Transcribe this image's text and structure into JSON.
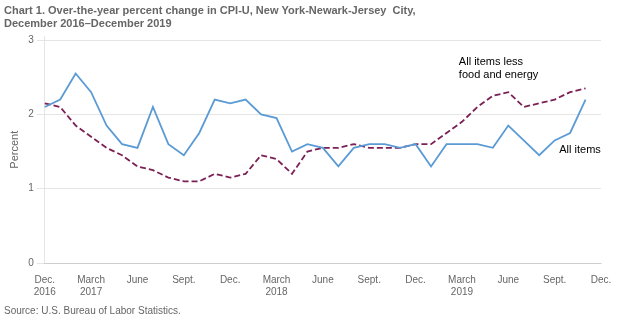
{
  "chart_data": {
    "type": "line",
    "title": "Chart 1. Over-the-year percent change in CPI-U, New York-Newark-Jersey  City,\nDecember 2016–December 2019",
    "ylabel": "Percent",
    "source": "Source: U.S. Bureau of Labor Statistics.",
    "categories": [
      "Dec.\n2016",
      null,
      null,
      "March\n2017",
      null,
      null,
      "June",
      null,
      null,
      "Sept.",
      null,
      null,
      "Dec.",
      null,
      null,
      "March\n2018",
      null,
      null,
      "June",
      null,
      null,
      "Sept.",
      null,
      null,
      "Dec.",
      null,
      null,
      "March\n2019",
      null,
      null,
      "June",
      null,
      null,
      "Sept.",
      null,
      null,
      "Dec."
    ],
    "series": [
      {
        "name": "All items",
        "color": "#5B9BD5",
        "line_style": "solid",
        "values": [
          2.1,
          2.2,
          2.55,
          2.3,
          1.85,
          1.6,
          1.55,
          2.1,
          1.6,
          1.45,
          1.75,
          2.2,
          2.15,
          2.2,
          2.0,
          1.95,
          1.5,
          1.6,
          1.55,
          1.3,
          1.55,
          1.6,
          1.6,
          1.55,
          1.6,
          1.3,
          1.6,
          1.6,
          1.6,
          1.55,
          1.85,
          1.65,
          1.45,
          1.65,
          1.75,
          2.2,
          null
        ]
      },
      {
        "name": "All items less food and energy",
        "color": "#7B2155",
        "line_style": "dashed",
        "values": [
          2.15,
          2.1,
          1.85,
          1.7,
          1.55,
          1.45,
          1.3,
          1.25,
          1.15,
          1.1,
          1.1,
          1.2,
          1.15,
          1.2,
          1.45,
          1.4,
          1.2,
          1.5,
          1.55,
          1.55,
          1.6,
          1.55,
          1.55,
          1.55,
          1.6,
          1.6,
          1.75,
          1.9,
          2.1,
          2.25,
          2.3,
          2.1,
          2.15,
          2.2,
          2.3,
          2.35,
          null
        ]
      }
    ],
    "annotations": [
      {
        "text": "All items less\nfood and energy",
        "x": 26.8,
        "y": 2.62
      },
      {
        "text": "All items",
        "x": 33.3,
        "y": 1.52
      }
    ],
    "ylim": [
      0,
      3.05
    ],
    "yticks": [
      0,
      1,
      2,
      3
    ],
    "grid": "y"
  }
}
